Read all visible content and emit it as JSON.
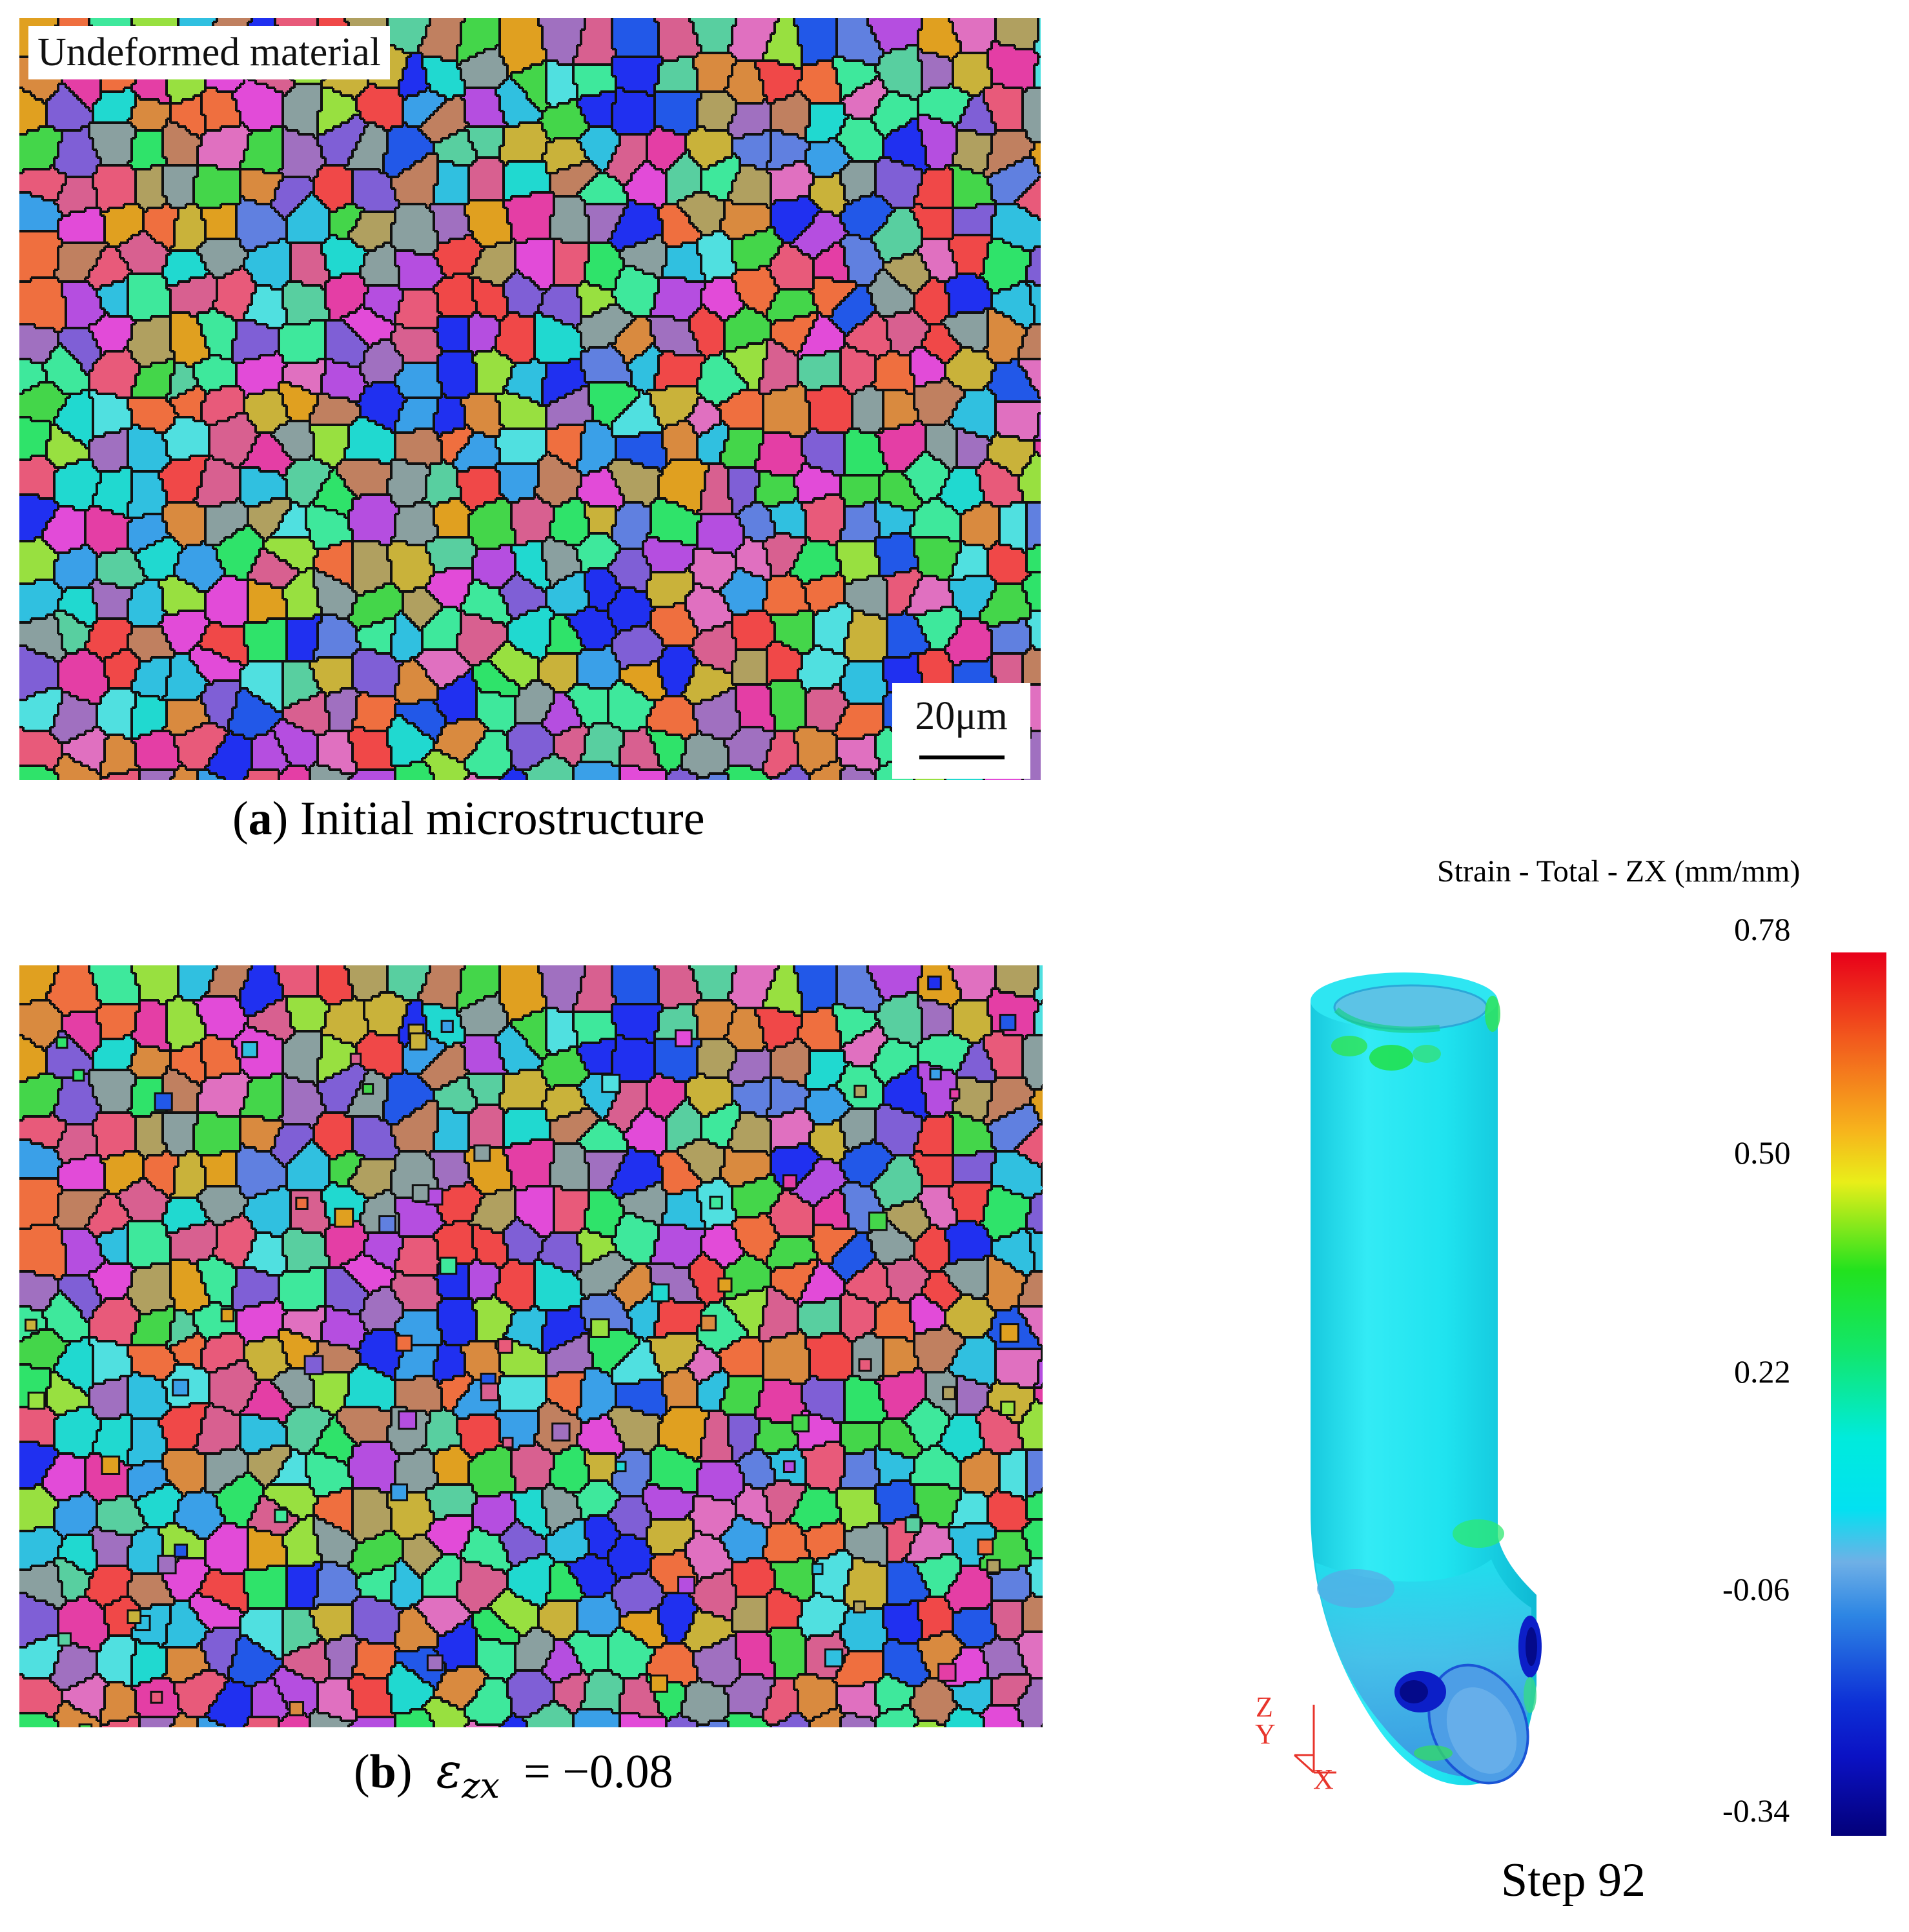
{
  "panel_a": {
    "inset_label": "Undeformed material",
    "scale_bar_label": "20μm",
    "caption_letter": "a",
    "caption_text": "Initial microstructure"
  },
  "panel_b": {
    "caption_letter": "b",
    "caption_symbol": "ε",
    "caption_subscript": "zx",
    "caption_value": "= −0.08"
  },
  "simulation": {
    "legend_title": "Strain - Total - ZX (mm/mm)",
    "ticks": [
      "0.78",
      "0.50",
      "0.22",
      "-0.06",
      "-0.34"
    ],
    "step_label": "Step 92",
    "axes": {
      "z": "Z",
      "y": "Y",
      "x": "X"
    },
    "axis_color": "#e8352c",
    "colormap": [
      "#e8001a",
      "#f25b1d",
      "#f7b21c",
      "#e9ee19",
      "#22e21e",
      "#00ebdc",
      "#29cdf2",
      "#1476e0",
      "#0b12c4",
      "#03007a"
    ]
  }
}
